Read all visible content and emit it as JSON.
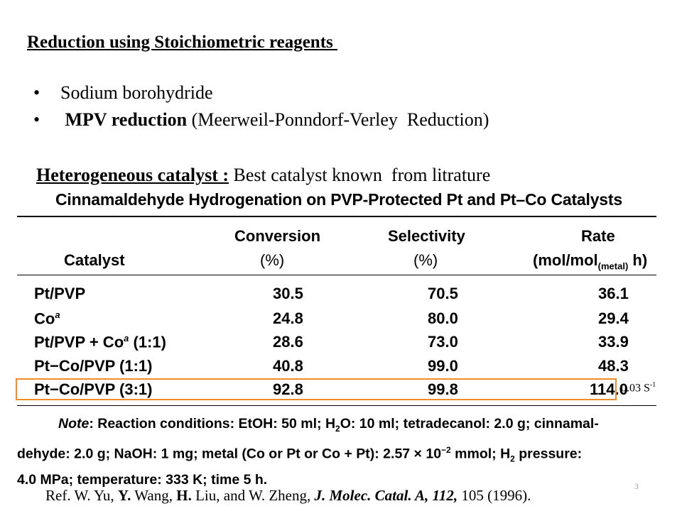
{
  "heading": "Reduction using Stoichiometric reagents ",
  "bullets": [
    {
      "bold": "",
      "text": "Sodium borohydride"
    },
    {
      "bold": " MPV reduction",
      "text": " (Meerweil-Ponndorf-Verley  Reduction)"
    }
  ],
  "hetero": {
    "bold": "Heterogeneous catalyst :",
    "text": " Best catalyst known  from litrature"
  },
  "table": {
    "title": "Cinnamaldehyde Hydrogenation on PVP-Protected Pt and Pt–Co Catalysts",
    "headers": {
      "catalyst": "Catalyst",
      "conversion": [
        "Conversion",
        "(%)"
      ],
      "selectivity": [
        "Selectivity",
        "(%)"
      ],
      "rate_top": "Rate",
      "rate_pre": "(mol/mol",
      "rate_sub": "(metal)",
      "rate_post": " h)"
    },
    "rows": [
      {
        "catalyst": "Pt/PVP",
        "sup": "",
        "suffix": "",
        "conversion": "30.5",
        "selectivity": "70.5",
        "rate": "36.1"
      },
      {
        "catalyst": "Co",
        "sup": "a",
        "suffix": "",
        "conversion": "24.8",
        "selectivity": "80.0",
        "rate": "29.4"
      },
      {
        "catalyst": "Pt/PVP + Co",
        "sup": "a",
        "suffix": " (1:1)",
        "conversion": "28.6",
        "selectivity": "73.0",
        "rate": "33.9"
      },
      {
        "catalyst": "Pt−Co/PVP (1:1)",
        "sup": "",
        "suffix": "",
        "conversion": "40.8",
        "selectivity": "99.0",
        "rate": "48.3"
      },
      {
        "catalyst": "Pt−Co/PVP (3:1)",
        "sup": "",
        "suffix": "",
        "conversion": "92.8",
        "selectivity": "99.8",
        "rate": "114.0"
      }
    ],
    "highlight_color": "#f28c28"
  },
  "rate_note": {
    "base": "0.03 S",
    "sup": "-1"
  },
  "note": {
    "label": "Note",
    "line1": ": Reaction conditions: EtOH: 50 ml; H",
    "h2o_sub": "2",
    "line1b": "O: 10 ml; tetradecanol: 2.0 g; cinnamal-",
    "line2": "dehyde: 2.0 g; NaOH: 1 mg; metal (Co or Pt or Co + Pt): 2.57 × 10",
    "exp": "−2",
    "line2b": " mmol; H",
    "h2_sub": "2",
    "line2c": " pressure:",
    "line3": "4.0 MPa; temperature: 333 K; time 5 h."
  },
  "reference": {
    "p1": "Ref. W. Yu, ",
    "b1": "Y.",
    "p2": " Wang, ",
    "b2": "H.",
    "p3": " Liu, and W. Zheng, ",
    "journal": "J. Molec. Catal. A, 112,",
    "p4": " 105 (1996)."
  },
  "page_number": "3"
}
